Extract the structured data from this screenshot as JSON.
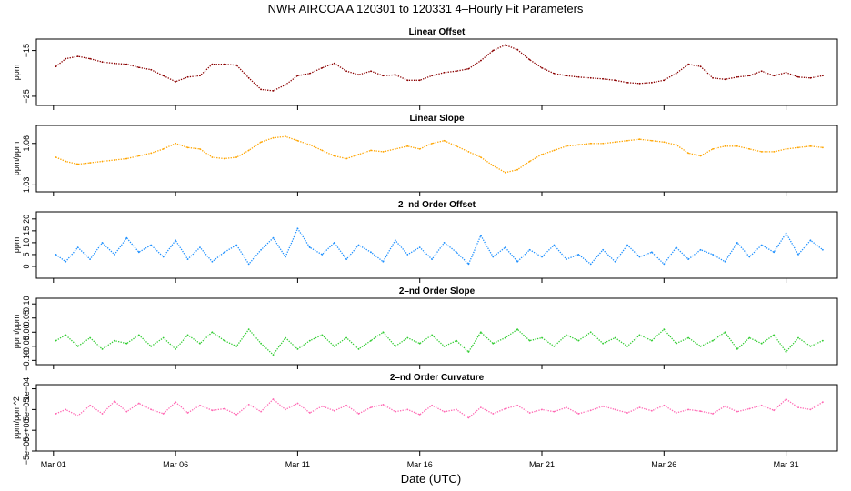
{
  "figure": {
    "title": "NWR   AIRCOA A   120301 to 120331   4–Hourly Fit Parameters",
    "xlabel": "Date (UTC)"
  },
  "chart_data": [
    {
      "type": "line",
      "title": "Linear Offset",
      "ylabel": "ppm",
      "color": "#8b0000",
      "xlim": [
        -0.7,
        32.1
      ],
      "ylim": [
        -27.0,
        -12.5
      ],
      "yticks": [
        -25,
        -15
      ],
      "ytick_labels": [
        "−25",
        "−15"
      ],
      "x": [
        0.1,
        0.5,
        1.0,
        1.5,
        2.0,
        2.5,
        3.0,
        3.5,
        4.0,
        4.5,
        5.0,
        5.5,
        6.0,
        6.5,
        7.0,
        7.5,
        8.0,
        8.5,
        9.0,
        9.5,
        10.0,
        10.5,
        11.0,
        11.5,
        12.0,
        12.5,
        13.0,
        13.5,
        14.0,
        14.5,
        15.0,
        15.5,
        16.0,
        16.5,
        17.0,
        17.5,
        18.0,
        18.5,
        19.0,
        19.5,
        20.0,
        20.5,
        21.0,
        21.5,
        22.0,
        22.5,
        23.0,
        23.5,
        24.0,
        24.5,
        25.0,
        25.5,
        26.0,
        26.5,
        27.0,
        27.5,
        28.0,
        28.5,
        29.0,
        29.5,
        30.0,
        30.5,
        31.0,
        31.5
      ],
      "values": [
        -18.5,
        -16.8,
        -16.3,
        -16.8,
        -17.5,
        -17.8,
        -18.0,
        -18.7,
        -19.2,
        -20.5,
        -21.8,
        -20.8,
        -20.5,
        -18.0,
        -18.0,
        -18.2,
        -21.0,
        -23.5,
        -23.8,
        -22.5,
        -20.5,
        -20.0,
        -18.8,
        -17.8,
        -19.5,
        -20.3,
        -19.5,
        -20.5,
        -20.3,
        -21.5,
        -21.5,
        -20.5,
        -19.8,
        -19.5,
        -19.0,
        -17.2,
        -15.0,
        -13.8,
        -14.8,
        -17.0,
        -18.8,
        -20.0,
        -20.5,
        -20.8,
        -21.0,
        -21.2,
        -21.5,
        -22.0,
        -22.2,
        -22.0,
        -21.5,
        -20.0,
        -18.0,
        -18.5,
        -21.0,
        -21.3,
        -20.8,
        -20.5,
        -19.5,
        -20.5,
        -19.8,
        -20.8,
        -21.0,
        -20.5
      ]
    },
    {
      "type": "line",
      "title": "Linear Slope",
      "ylabel": "ppm/ppm",
      "color": "#ffa500",
      "xlim": [
        -0.7,
        32.1
      ],
      "ylim": [
        1.025,
        1.073
      ],
      "yticks": [
        1.03,
        1.06
      ],
      "ytick_labels": [
        "1.03",
        "1.06"
      ],
      "x": [
        0.1,
        0.5,
        1.0,
        1.5,
        2.0,
        2.5,
        3.0,
        3.5,
        4.0,
        4.5,
        5.0,
        5.5,
        6.0,
        6.5,
        7.0,
        7.5,
        8.0,
        8.5,
        9.0,
        9.5,
        10.0,
        10.5,
        11.0,
        11.5,
        12.0,
        12.5,
        13.0,
        13.5,
        14.0,
        14.5,
        15.0,
        15.5,
        16.0,
        16.5,
        17.0,
        17.5,
        18.0,
        18.5,
        19.0,
        19.5,
        20.0,
        20.5,
        21.0,
        21.5,
        22.0,
        22.5,
        23.0,
        23.5,
        24.0,
        24.5,
        25.0,
        25.5,
        26.0,
        26.5,
        27.0,
        27.5,
        28.0,
        28.5,
        29.0,
        29.5,
        30.0,
        30.5,
        31.0,
        31.5
      ],
      "values": [
        1.05,
        1.047,
        1.045,
        1.046,
        1.047,
        1.048,
        1.049,
        1.051,
        1.053,
        1.056,
        1.06,
        1.057,
        1.056,
        1.05,
        1.049,
        1.05,
        1.055,
        1.061,
        1.064,
        1.065,
        1.062,
        1.059,
        1.055,
        1.051,
        1.049,
        1.052,
        1.055,
        1.054,
        1.056,
        1.058,
        1.056,
        1.06,
        1.062,
        1.058,
        1.054,
        1.05,
        1.044,
        1.039,
        1.041,
        1.047,
        1.052,
        1.055,
        1.058,
        1.059,
        1.06,
        1.06,
        1.061,
        1.062,
        1.063,
        1.062,
        1.061,
        1.059,
        1.053,
        1.051,
        1.056,
        1.058,
        1.058,
        1.056,
        1.054,
        1.054,
        1.056,
        1.057,
        1.058,
        1.057
      ]
    },
    {
      "type": "line",
      "title": "2–nd Order Offset",
      "ylabel": "ppm",
      "color": "#1e90ff",
      "xlim": [
        -0.7,
        32.1
      ],
      "ylim": [
        -5,
        23
      ],
      "yticks": [
        0,
        5,
        10,
        15,
        20
      ],
      "ytick_labels": [
        "0",
        "5",
        "10",
        "15",
        "20"
      ],
      "x": [
        0.1,
        0.5,
        1.0,
        1.5,
        2.0,
        2.5,
        3.0,
        3.5,
        4.0,
        4.5,
        5.0,
        5.5,
        6.0,
        6.5,
        7.0,
        7.5,
        8.0,
        8.5,
        9.0,
        9.5,
        10.0,
        10.5,
        11.0,
        11.5,
        12.0,
        12.5,
        13.0,
        13.5,
        14.0,
        14.5,
        15.0,
        15.5,
        16.0,
        16.5,
        17.0,
        17.5,
        18.0,
        18.5,
        19.0,
        19.5,
        20.0,
        20.5,
        21.0,
        21.5,
        22.0,
        22.5,
        23.0,
        23.5,
        24.0,
        24.5,
        25.0,
        25.5,
        26.0,
        26.5,
        27.0,
        27.5,
        28.0,
        28.5,
        29.0,
        29.5,
        30.0,
        30.5,
        31.0,
        31.5
      ],
      "values": [
        5,
        2,
        8,
        3,
        10,
        5,
        12,
        6,
        9,
        4,
        11,
        3,
        8,
        2,
        6,
        9,
        1,
        7,
        12,
        4,
        16,
        8,
        5,
        10,
        3,
        9,
        6,
        2,
        11,
        5,
        8,
        3,
        10,
        6,
        1,
        13,
        4,
        8,
        2,
        7,
        4,
        9,
        3,
        5,
        1,
        7,
        2,
        9,
        4,
        6,
        1,
        8,
        3,
        7,
        5,
        2,
        10,
        4,
        9,
        6,
        14,
        5,
        11,
        7
      ]
    },
    {
      "type": "line",
      "title": "2–nd Order Slope",
      "ylabel": "ppm/ppm",
      "color": "#32cd32",
      "xlim": [
        -0.7,
        32.1
      ],
      "ylim": [
        -0.115,
        0.12
      ],
      "yticks": [
        -0.1,
        -0.05,
        0.0,
        0.05,
        0.1
      ],
      "ytick_labels": [
        "−0.10",
        "−0.05",
        "0.00",
        "0.05",
        "0.10"
      ],
      "x": [
        0.1,
        0.5,
        1.0,
        1.5,
        2.0,
        2.5,
        3.0,
        3.5,
        4.0,
        4.5,
        5.0,
        5.5,
        6.0,
        6.5,
        7.0,
        7.5,
        8.0,
        8.5,
        9.0,
        9.5,
        10.0,
        10.5,
        11.0,
        11.5,
        12.0,
        12.5,
        13.0,
        13.5,
        14.0,
        14.5,
        15.0,
        15.5,
        16.0,
        16.5,
        17.0,
        17.5,
        18.0,
        18.5,
        19.0,
        19.5,
        20.0,
        20.5,
        21.0,
        21.5,
        22.0,
        22.5,
        23.0,
        23.5,
        24.0,
        24.5,
        25.0,
        25.5,
        26.0,
        26.5,
        27.0,
        27.5,
        28.0,
        28.5,
        29.0,
        29.5,
        30.0,
        30.5,
        31.0,
        31.5
      ],
      "values": [
        -0.03,
        -0.01,
        -0.05,
        -0.02,
        -0.06,
        -0.03,
        -0.04,
        -0.01,
        -0.05,
        -0.02,
        -0.06,
        -0.01,
        -0.04,
        0.0,
        -0.03,
        -0.05,
        0.01,
        -0.04,
        -0.08,
        -0.02,
        -0.06,
        -0.03,
        -0.01,
        -0.05,
        -0.02,
        -0.06,
        -0.03,
        0.0,
        -0.05,
        -0.02,
        -0.04,
        -0.01,
        -0.05,
        -0.03,
        -0.07,
        0.0,
        -0.04,
        -0.02,
        0.01,
        -0.03,
        -0.02,
        -0.05,
        -0.01,
        -0.03,
        0.0,
        -0.04,
        -0.02,
        -0.05,
        -0.01,
        -0.03,
        0.01,
        -0.04,
        -0.02,
        -0.05,
        -0.03,
        0.0,
        -0.06,
        -0.02,
        -0.04,
        -0.01,
        -0.07,
        -0.02,
        -0.05,
        -0.03
      ]
    },
    {
      "type": "line",
      "title": "2–nd Order Curvature",
      "ylabel": "ppm/ppm^2",
      "color": "#ff69b4",
      "xlim": [
        -0.7,
        32.1
      ],
      "ylim": [
        -5e-05,
        0.00011
      ],
      "yticks": [
        -5e-05,
        0.0,
        5e-05,
        0.0001
      ],
      "ytick_labels": [
        "−5e−05",
        "0e+00",
        "5e−05",
        "1e−04"
      ],
      "x": [
        0.1,
        0.5,
        1.0,
        1.5,
        2.0,
        2.5,
        3.0,
        3.5,
        4.0,
        4.5,
        5.0,
        5.5,
        6.0,
        6.5,
        7.0,
        7.5,
        8.0,
        8.5,
        9.0,
        9.5,
        10.0,
        10.5,
        11.0,
        11.5,
        12.0,
        12.5,
        13.0,
        13.5,
        14.0,
        14.5,
        15.0,
        15.5,
        16.0,
        16.5,
        17.0,
        17.5,
        18.0,
        18.5,
        19.0,
        19.5,
        20.0,
        20.5,
        21.0,
        21.5,
        22.0,
        22.5,
        23.0,
        23.5,
        24.0,
        24.5,
        25.0,
        25.5,
        26.0,
        26.5,
        27.0,
        27.5,
        28.0,
        28.5,
        29.0,
        29.5,
        30.0,
        30.5,
        31.0,
        31.5
      ],
      "values": [
        4e-05,
        5e-05,
        3.5e-05,
        6e-05,
        4e-05,
        7e-05,
        4.5e-05,
        6.5e-05,
        5e-05,
        4e-05,
        6.8e-05,
        4.2e-05,
        6e-05,
        4.8e-05,
        5.2e-05,
        3.8e-05,
        6.2e-05,
        4.5e-05,
        7.5e-05,
        5e-05,
        6.5e-05,
        4.2e-05,
        5.8e-05,
        4.7e-05,
        6e-05,
        4e-05,
        5.5e-05,
        6.2e-05,
        4.5e-05,
        5e-05,
        3.8e-05,
        6e-05,
        4.5e-05,
        5e-05,
        3e-05,
        5.5e-05,
        4e-05,
        5.2e-05,
        6e-05,
        4.2e-05,
        5e-05,
        4.5e-05,
        5.5e-05,
        4e-05,
        4.8e-05,
        5.8e-05,
        5e-05,
        4.2e-05,
        5.5e-05,
        4.7e-05,
        6e-05,
        4.2e-05,
        5e-05,
        4.6e-05,
        4e-05,
        5.8e-05,
        4.5e-05,
        5.2e-05,
        6e-05,
        4.8e-05,
        7.5e-05,
        5.5e-05,
        5e-05,
        6.8e-05
      ]
    }
  ],
  "x_axis": {
    "ticks": [
      0,
      5,
      10,
      15,
      20,
      25,
      30
    ],
    "labels": [
      "Mar 01",
      "Mar 06",
      "Mar 11",
      "Mar 16",
      "Mar 21",
      "Mar 26",
      "Mar 31"
    ]
  }
}
